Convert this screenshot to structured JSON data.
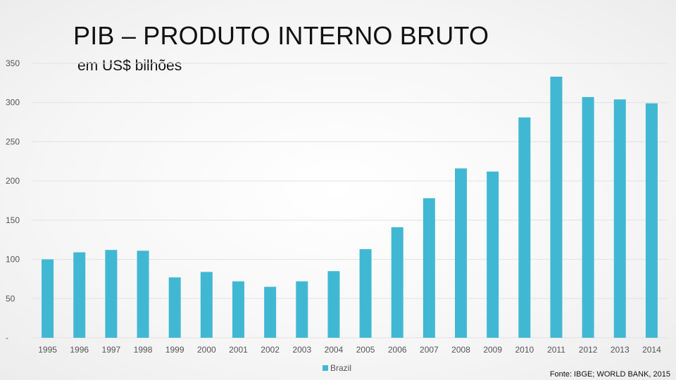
{
  "chart_data": {
    "type": "bar",
    "title": "PIB – PRODUTO INTERNO BRUTO",
    "subtitle": "em US$ bilhões",
    "source": "Fonte: IBGE; WORLD BANK, 2015",
    "categories": [
      "1995",
      "1996",
      "1997",
      "1998",
      "1999",
      "2000",
      "2001",
      "2002",
      "2003",
      "2004",
      "2005",
      "2006",
      "2007",
      "2008",
      "2009",
      "2010",
      "2011",
      "2012",
      "2013",
      "2014"
    ],
    "series": [
      {
        "name": "Brazil",
        "values": [
          100,
          109,
          112,
          111,
          77,
          84,
          72,
          65,
          72,
          85,
          113,
          141,
          178,
          216,
          212,
          281,
          333,
          307,
          304,
          299
        ]
      }
    ],
    "ylim": [
      0,
      350
    ],
    "yticks": [
      0,
      50,
      100,
      150,
      200,
      250,
      300,
      350
    ],
    "ytick_labels": [
      "-",
      "50",
      "100",
      "150",
      "200",
      "250",
      "300",
      "350"
    ],
    "grid": true,
    "legend_position": "bottom-center",
    "bar_color": "#41b8d3",
    "grid_color": "#e2e2e2"
  }
}
